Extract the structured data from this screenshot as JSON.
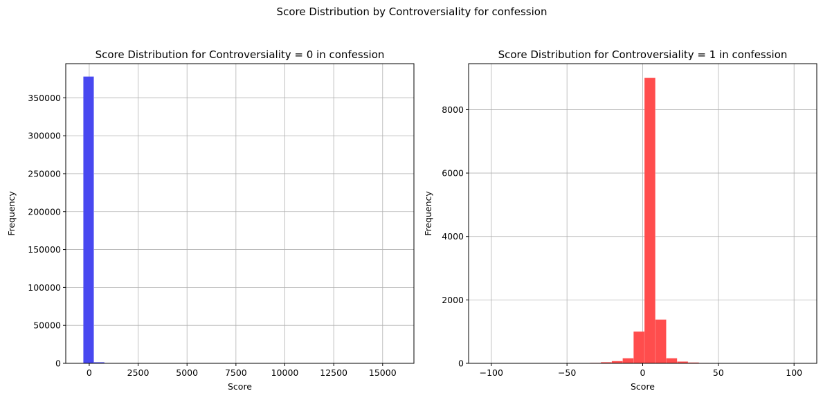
{
  "figure": {
    "suptitle": "Score Distribution by Controversiality for confession"
  },
  "chart_data": [
    {
      "type": "bar",
      "title": "Score Distribution for Controversiality = 0 in confession",
      "xlabel": "Score",
      "ylabel": "Frequency",
      "color": "#4848f0",
      "xlim": [
        -1200,
        16600
      ],
      "ylim": [
        0,
        395000
      ],
      "xticks": [
        0,
        2500,
        5000,
        7500,
        10000,
        12500,
        15000
      ],
      "xtick_labels": [
        "0",
        "2500",
        "5000",
        "7500",
        "10000",
        "12500",
        "15000"
      ],
      "yticks": [
        0,
        50000,
        100000,
        150000,
        200000,
        250000,
        300000,
        350000
      ],
      "ytick_labels": [
        "0",
        "50000",
        "100000",
        "150000",
        "200000",
        "250000",
        "300000",
        "350000"
      ],
      "grid": true,
      "bins": [
        {
          "x0": -300,
          "x1": 240,
          "value": 378000
        },
        {
          "x0": 240,
          "x1": 780,
          "value": 1400
        },
        {
          "x0": 780,
          "x1": 1320,
          "value": 300
        },
        {
          "x0": 1320,
          "x1": 1860,
          "value": 100
        }
      ]
    },
    {
      "type": "bar",
      "title": "Score Distribution for Controversiality = 1 in confession",
      "xlabel": "Score",
      "ylabel": "Frequency",
      "color": "#ff4d4d",
      "xlim": [
        -115,
        115
      ],
      "ylim": [
        0,
        9450
      ],
      "xticks": [
        -100,
        -50,
        0,
        50,
        100
      ],
      "xtick_labels": [
        "−100",
        "−50",
        "0",
        "50",
        "100"
      ],
      "yticks": [
        0,
        2000,
        4000,
        6000,
        8000
      ],
      "ytick_labels": [
        "0",
        "2000",
        "4000",
        "6000",
        "8000"
      ],
      "grid": true,
      "bins": [
        {
          "x0": -106.8,
          "x1": -99.6,
          "value": 1
        },
        {
          "x0": -99.6,
          "x1": -92.4,
          "value": 1
        },
        {
          "x0": -92.4,
          "x1": -85.2,
          "value": 2
        },
        {
          "x0": -85.2,
          "x1": -78.0,
          "value": 2
        },
        {
          "x0": -78.0,
          "x1": -70.8,
          "value": 3
        },
        {
          "x0": -70.8,
          "x1": -63.6,
          "value": 3
        },
        {
          "x0": -63.6,
          "x1": -56.4,
          "value": 4
        },
        {
          "x0": -56.4,
          "x1": -49.2,
          "value": 5
        },
        {
          "x0": -49.2,
          "x1": -42.0,
          "value": 6
        },
        {
          "x0": -42.0,
          "x1": -34.8,
          "value": 8
        },
        {
          "x0": -34.8,
          "x1": -27.6,
          "value": 15
        },
        {
          "x0": -27.6,
          "x1": -20.4,
          "value": 35
        },
        {
          "x0": -20.4,
          "x1": -13.2,
          "value": 70
        },
        {
          "x0": -13.2,
          "x1": -6.0,
          "value": 160
        },
        {
          "x0": -6.0,
          "x1": 1.2,
          "value": 1000
        },
        {
          "x0": 1.2,
          "x1": 8.4,
          "value": 9000
        },
        {
          "x0": 8.4,
          "x1": 15.6,
          "value": 1380
        },
        {
          "x0": 15.6,
          "x1": 22.8,
          "value": 160
        },
        {
          "x0": 22.8,
          "x1": 30.0,
          "value": 55
        },
        {
          "x0": 30.0,
          "x1": 37.2,
          "value": 25
        },
        {
          "x0": 37.2,
          "x1": 44.4,
          "value": 12
        },
        {
          "x0": 44.4,
          "x1": 51.6,
          "value": 6
        },
        {
          "x0": 51.6,
          "x1": 58.8,
          "value": 4
        },
        {
          "x0": 58.8,
          "x1": 66.0,
          "value": 3
        },
        {
          "x0": 66.0,
          "x1": 73.2,
          "value": 2
        },
        {
          "x0": 73.2,
          "x1": 80.4,
          "value": 2
        },
        {
          "x0": 80.4,
          "x1": 87.6,
          "value": 1
        },
        {
          "x0": 87.6,
          "x1": 94.8,
          "value": 1
        },
        {
          "x0": 94.8,
          "x1": 102.0,
          "value": 1
        }
      ]
    }
  ]
}
